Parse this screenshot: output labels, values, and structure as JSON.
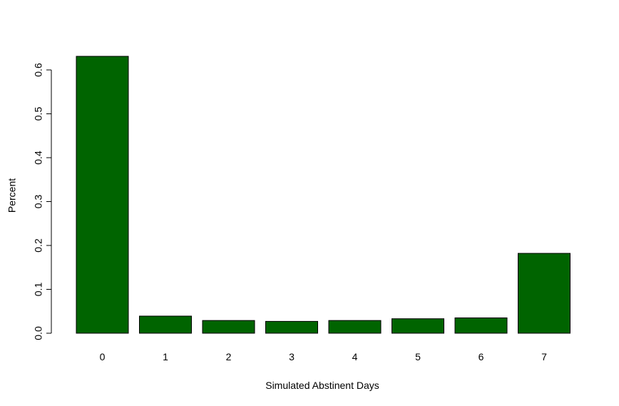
{
  "colors": {
    "bar_fill": "#006400",
    "bar_stroke": "#000000",
    "axis": "#000000",
    "background": "#ffffff"
  },
  "chart_data": {
    "type": "bar",
    "title": "",
    "xlabel": "Simulated Abstinent Days",
    "ylabel": "Percent",
    "categories": [
      "0",
      "1",
      "2",
      "3",
      "4",
      "5",
      "6",
      "7"
    ],
    "values": [
      0.631,
      0.039,
      0.029,
      0.027,
      0.029,
      0.033,
      0.035,
      0.182
    ],
    "ylim": [
      0,
      0.6
    ],
    "yticks": [
      0.0,
      0.1,
      0.2,
      0.3,
      0.4,
      0.5,
      0.6
    ],
    "ytick_labels": [
      "0.0",
      "0.1",
      "0.2",
      "0.3",
      "0.4",
      "0.5",
      "0.6"
    ],
    "grid": false,
    "legend": "none"
  }
}
